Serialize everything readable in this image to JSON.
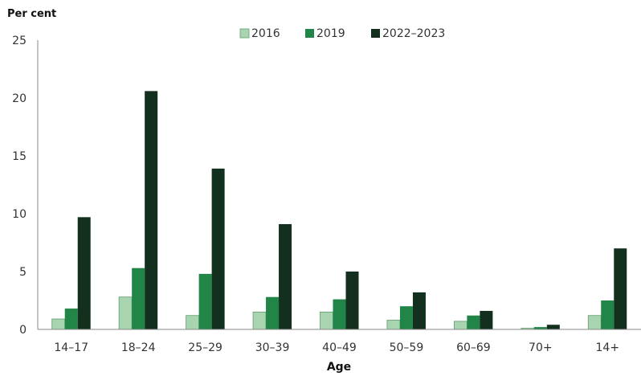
{
  "chart_data": {
    "type": "bar",
    "ylabel": "Per cent",
    "xlabel": "Age",
    "ylim": [
      0,
      25
    ],
    "yticks": [
      0,
      5,
      10,
      15,
      20,
      25
    ],
    "grid": false,
    "legend_position": "top-center",
    "categories": [
      "14–17",
      "18–24",
      "25–29",
      "30–39",
      "40–49",
      "50–59",
      "60–69",
      "70+",
      "14+"
    ],
    "series": [
      {
        "name": "2016",
        "color": "#a8d5b0",
        "values": [
          0.9,
          2.8,
          1.2,
          1.5,
          1.5,
          0.8,
          0.7,
          0.1,
          1.2
        ]
      },
      {
        "name": "2019",
        "color": "#218548",
        "values": [
          1.8,
          5.3,
          4.8,
          2.8,
          2.6,
          2.0,
          1.2,
          0.2,
          2.5
        ]
      },
      {
        "name": "2022–2023",
        "color": "#13301f",
        "values": [
          9.7,
          20.6,
          13.9,
          9.1,
          5.0,
          3.2,
          1.6,
          0.4,
          7.0
        ]
      }
    ]
  }
}
